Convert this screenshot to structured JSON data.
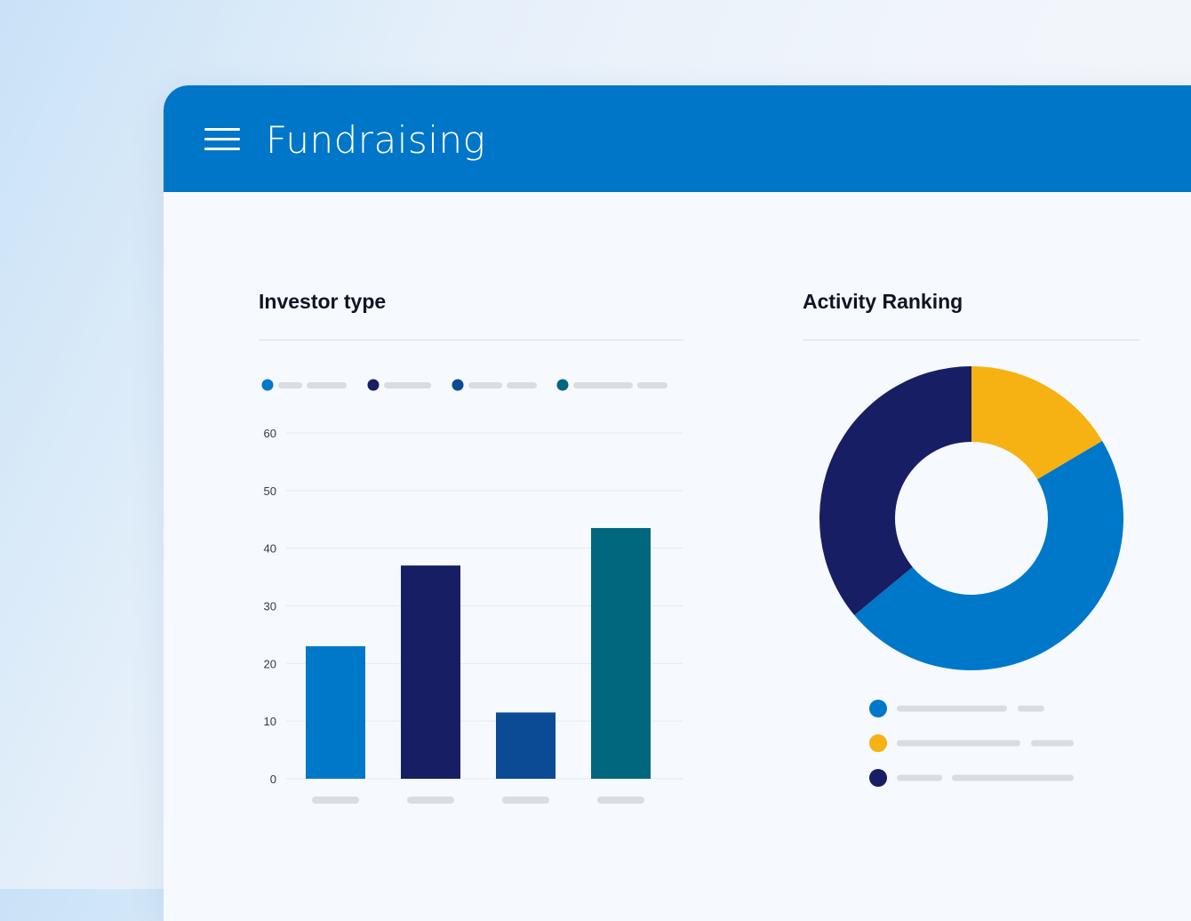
{
  "app": {
    "title": "Fundraising"
  },
  "cards": {
    "investor_type": {
      "title": "Investor type"
    },
    "activity_ranking": {
      "title": "Activity Ranking"
    }
  },
  "colors": {
    "header": "#0076c8",
    "blue": "#0078c9",
    "navy": "#171e63",
    "dark_blue": "#0b4a94",
    "teal": "#00677f",
    "yellow": "#f5b212",
    "placeholder": "#d9dde3"
  },
  "chart_data": [
    {
      "type": "bar",
      "title": "Investor type",
      "categories": [
        "",
        "",
        "",
        ""
      ],
      "series": [
        {
          "values": [
            23,
            37,
            11.5,
            43.5
          ]
        }
      ],
      "bar_colors": [
        "#0078c9",
        "#171e63",
        "#0b4a94",
        "#00677f"
      ],
      "yticks": [
        0,
        10,
        20,
        30,
        40,
        50,
        60
      ],
      "ylim": [
        0,
        60
      ],
      "grid": true,
      "legend": "top"
    },
    {
      "type": "pie",
      "title": "Activity Ranking",
      "donut": true,
      "slices": [
        {
          "value": 16.5,
          "color": "#f5b212"
        },
        {
          "value": 47.5,
          "color": "#0078c9"
        },
        {
          "value": 36,
          "color": "#171e63"
        }
      ],
      "legend": "bottom"
    }
  ]
}
